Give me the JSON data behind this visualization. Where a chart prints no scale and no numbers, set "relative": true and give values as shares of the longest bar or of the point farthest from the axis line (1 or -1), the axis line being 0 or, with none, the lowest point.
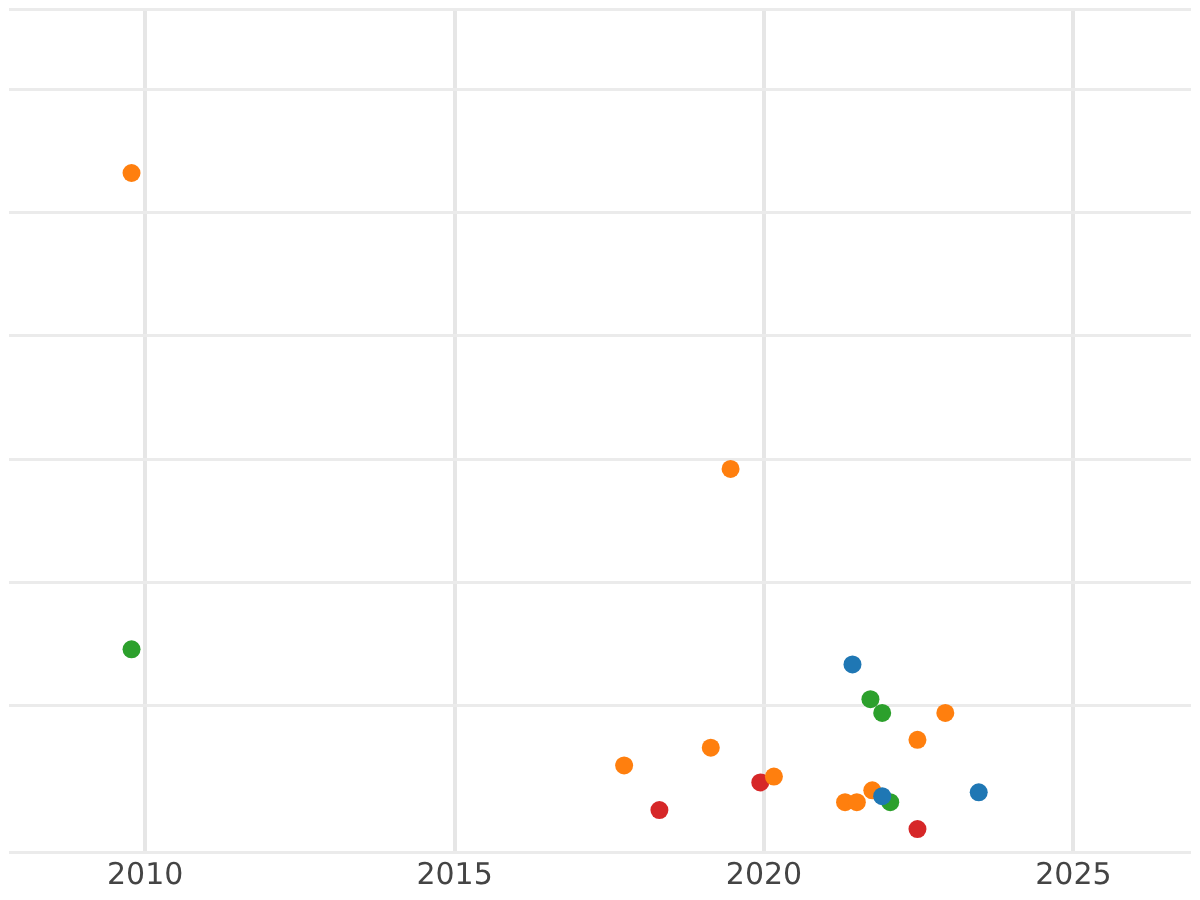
{
  "chart_data": {
    "type": "scatter",
    "relative": true,
    "xlim": [
      2007.8,
      2026.9
    ],
    "xticks": [
      2010,
      2015,
      2020,
      2025
    ],
    "grid": true,
    "legend": false,
    "marker": "circle",
    "series": [
      {
        "color": "#1f77b4",
        "x": [
          2021.43,
          2021.91,
          2023.47
        ],
        "values": [
          0.251,
          0.05,
          0.056
        ]
      },
      {
        "color": "#ff7f0e",
        "x": [
          2009.78,
          2019.46,
          2017.74,
          2019.14,
          2020.16,
          2021.31,
          2021.5,
          2021.75,
          2022.48,
          2022.93
        ],
        "values": [
          1,
          0.549,
          0.097,
          0.124,
          0.08,
          0.041,
          0.041,
          0.059,
          0.136,
          0.177
        ]
      },
      {
        "color": "#2ca02c",
        "x": [
          2009.78,
          2021.72,
          2021.91,
          2022.04
        ],
        "values": [
          0.274,
          0.198,
          0.177,
          0.041
        ]
      },
      {
        "color": "#d62728",
        "x": [
          2018.31,
          2019.94,
          2022.48
        ],
        "values": [
          0.029,
          0.071,
          0
        ]
      }
    ]
  }
}
